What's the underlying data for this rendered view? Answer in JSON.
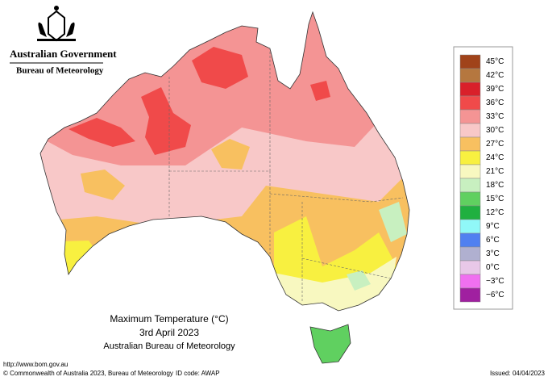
{
  "header": {
    "government": "Australian Government",
    "agency": "Bureau of Meteorology"
  },
  "map": {
    "title": "Maximum Temperature (°C)",
    "date": "3rd April 2023",
    "source": "Australian Bureau of Meteorology"
  },
  "legend": {
    "items": [
      {
        "label": "45°C",
        "color": "#a0431a"
      },
      {
        "label": "42°C",
        "color": "#b5773f"
      },
      {
        "label": "39°C",
        "color": "#d9202a"
      },
      {
        "label": "36°C",
        "color": "#f04a4a"
      },
      {
        "label": "33°C",
        "color": "#f49494"
      },
      {
        "label": "30°C",
        "color": "#f8c8c8"
      },
      {
        "label": "27°C",
        "color": "#f8c060"
      },
      {
        "label": "24°C",
        "color": "#f8f040"
      },
      {
        "label": "21°C",
        "color": "#f8f8c0"
      },
      {
        "label": "18°C",
        "color": "#c8f0c0"
      },
      {
        "label": "15°C",
        "color": "#60d060"
      },
      {
        "label": "12°C",
        "color": "#20b040"
      },
      {
        "label": "9°C",
        "color": "#90f8f8"
      },
      {
        "label": "6°C",
        "color": "#5080f0"
      },
      {
        "label": "3°C",
        "color": "#b0b0d0"
      },
      {
        "label": "0°C",
        "color": "#e8c8e8"
      },
      {
        "label": "−3°C",
        "color": "#f070f0"
      },
      {
        "label": "−6°C",
        "color": "#a020a0"
      }
    ]
  },
  "footer": {
    "url": "http://www.bom.gov.au",
    "copyright": "© Commonwealth of Australia 2023, Bureau of Meteorology",
    "id_code": "ID code: AWAP",
    "issued": "Issued: 04/04/2023"
  }
}
